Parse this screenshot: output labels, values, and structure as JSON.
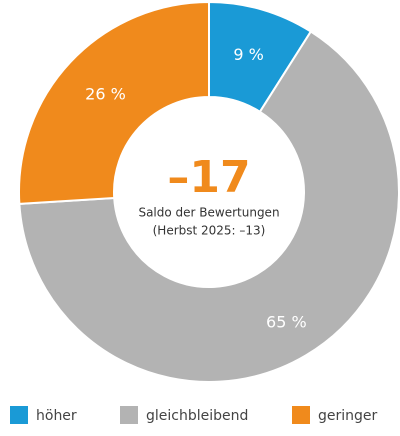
{
  "chart_data": {
    "type": "donut",
    "categories": [
      "höher",
      "gleichbleibend",
      "geringer"
    ],
    "values": [
      9,
      65,
      26
    ],
    "value_labels": [
      "9 %",
      "65 %",
      "26 %"
    ],
    "colors": [
      "#1a9ad6",
      "#b3b3b3",
      "#f08a1c"
    ],
    "center_value": "–17",
    "center_label": "Saldo der Bewertungen",
    "center_sublabel": "(Herbst 2025: –13)",
    "legend": "bottom"
  }
}
